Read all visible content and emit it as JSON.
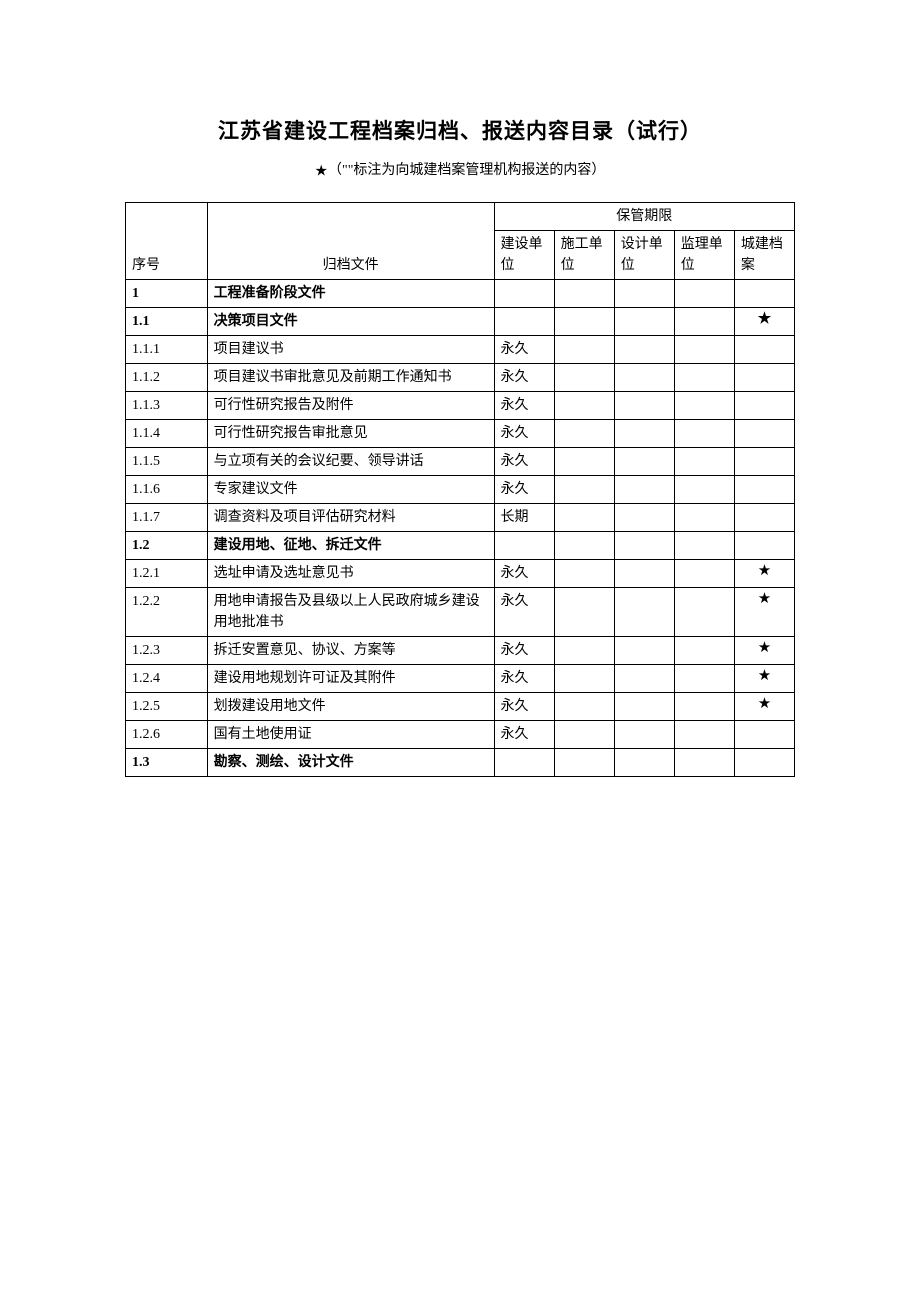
{
  "title": "江苏省建设工程档案归档、报送内容目录（试行）",
  "subtitle_prefix": "（\"",
  "subtitle_star": "★",
  "subtitle_suffix": "\"标注为向城建档案管理机构报送的内容）",
  "headers": {
    "seq": "序号",
    "file": "归档文件",
    "period_group": "保管期限",
    "col1": "建设单位",
    "col2": "施工单位",
    "col3": "设计单位",
    "col4": "监理单位",
    "col5": "城建档案"
  },
  "star_symbol": "★",
  "rows": [
    {
      "seq": "1",
      "file": "工程准备阶段文件",
      "c1": "",
      "c2": "",
      "c3": "",
      "c4": "",
      "c5": "",
      "bold": true
    },
    {
      "seq": "1.1",
      "file": "决策项目文件",
      "c1": "",
      "c2": "",
      "c3": "",
      "c4": "",
      "c5": "★",
      "bold": true
    },
    {
      "seq": "1.1.1",
      "file": "项目建议书",
      "c1": "永久",
      "c2": "",
      "c3": "",
      "c4": "",
      "c5": "",
      "bold": false
    },
    {
      "seq": "1.1.2",
      "file": "项目建议书审批意见及前期工作通知书",
      "c1": "永久",
      "c2": "",
      "c3": "",
      "c4": "",
      "c5": "",
      "bold": false
    },
    {
      "seq": "1.1.3",
      "file": "可行性研究报告及附件",
      "c1": "永久",
      "c2": "",
      "c3": "",
      "c4": "",
      "c5": "",
      "bold": false
    },
    {
      "seq": "1.1.4",
      "file": "可行性研究报告审批意见",
      "c1": "永久",
      "c2": "",
      "c3": "",
      "c4": "",
      "c5": "",
      "bold": false
    },
    {
      "seq": "1.1.5",
      "file": "与立项有关的会议纪要、领导讲话",
      "c1": "永久",
      "c2": "",
      "c3": "",
      "c4": "",
      "c5": "",
      "bold": false
    },
    {
      "seq": "1.1.6",
      "file": "专家建议文件",
      "c1": "永久",
      "c2": "",
      "c3": "",
      "c4": "",
      "c5": "",
      "bold": false
    },
    {
      "seq": "1.1.7",
      "file": "调查资料及项目评估研究材料",
      "c1": "长期",
      "c2": "",
      "c3": "",
      "c4": "",
      "c5": "",
      "bold": false
    },
    {
      "seq": "1.2",
      "file": "建设用地、征地、拆迁文件",
      "c1": "",
      "c2": "",
      "c3": "",
      "c4": "",
      "c5": "",
      "bold": true
    },
    {
      "seq": "1.2.1",
      "file": "选址申请及选址意见书",
      "c1": "永久",
      "c2": "",
      "c3": "",
      "c4": "",
      "c5": "★",
      "bold": false
    },
    {
      "seq": "1.2.2",
      "file": "用地申请报告及县级以上人民政府城乡建设用地批准书",
      "c1": "永久",
      "c2": "",
      "c3": "",
      "c4": "",
      "c5": "★",
      "bold": false
    },
    {
      "seq": "1.2.3",
      "file": "拆迁安置意见、协议、方案等",
      "c1": "永久",
      "c2": "",
      "c3": "",
      "c4": "",
      "c5": "★",
      "bold": false
    },
    {
      "seq": "1.2.4",
      "file": "建设用地规划许可证及其附件",
      "c1": "永久",
      "c2": "",
      "c3": "",
      "c4": "",
      "c5": "★",
      "bold": false
    },
    {
      "seq": "1.2.5",
      "file": "划拨建设用地文件",
      "c1": "永久",
      "c2": "",
      "c3": "",
      "c4": "",
      "c5": "★",
      "bold": false
    },
    {
      "seq": "1.2.6",
      "file": "国有土地使用证",
      "c1": "永久",
      "c2": "",
      "c3": "",
      "c4": "",
      "c5": "",
      "bold": false
    },
    {
      "seq": "1.3",
      "file": "勘察、测绘、设计文件",
      "c1": "",
      "c2": "",
      "c3": "",
      "c4": "",
      "c5": "",
      "bold": true
    }
  ]
}
